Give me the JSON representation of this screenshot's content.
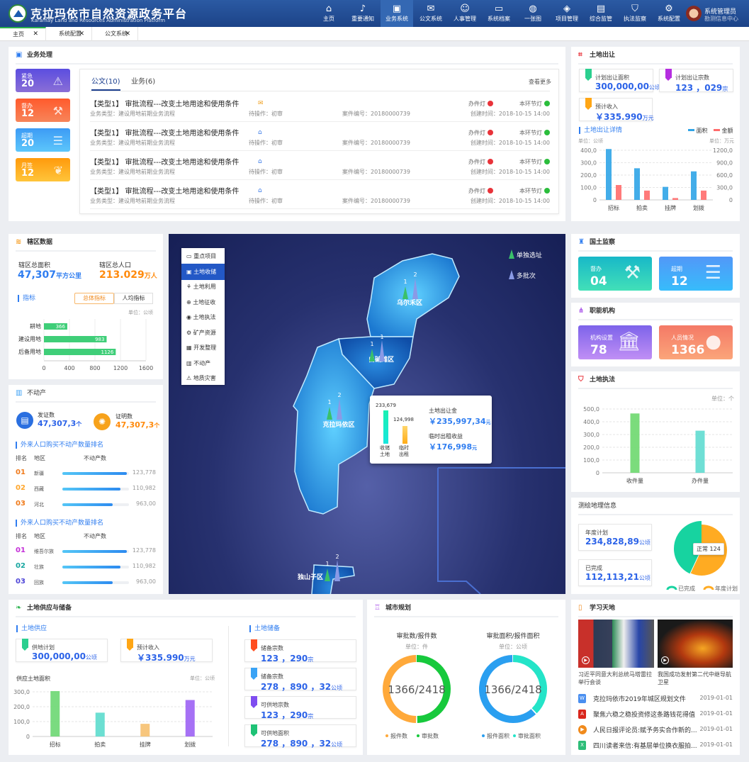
{
  "header": {
    "title": "克拉玛依市自然资源政务平台",
    "subtitle": "Karamay Land and Resources Administration Platform",
    "nav": [
      {
        "label": "主页",
        "icon": "home-icon",
        "g": "⌂"
      },
      {
        "label": "重要通知",
        "icon": "bell-icon",
        "g": "♪"
      },
      {
        "label": "业务系统",
        "icon": "briefcase-icon",
        "g": "▣",
        "active": true
      },
      {
        "label": "公文系统",
        "icon": "document-icon",
        "g": "✉"
      },
      {
        "label": "人事管理",
        "icon": "person-icon",
        "g": "☺"
      },
      {
        "label": "系统档案",
        "icon": "folder-icon",
        "g": "▭"
      },
      {
        "label": "一张图",
        "icon": "globe-icon",
        "g": "◍"
      },
      {
        "label": "项目管理",
        "icon": "layers-icon",
        "g": "◈"
      },
      {
        "label": "综合监管",
        "icon": "monitor-icon",
        "g": "▤"
      },
      {
        "label": "执法监察",
        "icon": "shield-icon",
        "g": "⛉"
      },
      {
        "label": "系统配置",
        "icon": "gear-icon",
        "g": "⚙"
      }
    ],
    "user": {
      "name": "系统管理员",
      "org": "勘测信息中心"
    }
  },
  "tabs": [
    "主页",
    "系统配置",
    "公文系统"
  ],
  "business": {
    "title": "业务处理",
    "stats": [
      {
        "label": "紧急",
        "value": "20",
        "g": "⚠",
        "icon": "alarm-icon",
        "c": "linear-gradient(#5b4de0,#8a6fd6)"
      },
      {
        "label": "督办",
        "value": "12",
        "g": "⚒",
        "icon": "gavel-icon",
        "c": "linear-gradient(#ff5a2c,#f7855a)"
      },
      {
        "label": "超期",
        "value": "20",
        "g": "☰",
        "icon": "overdue-doc-icon",
        "c": "linear-gradient(#3d9bf5,#5cc6fb)"
      },
      {
        "label": "月签",
        "value": "12",
        "g": "❦",
        "icon": "feather-icon",
        "c": "linear-gradient(#ff9a0c,#ffc53b)"
      }
    ],
    "tabs": [
      "公文(10)",
      "业务(6)"
    ],
    "more": "查看更多",
    "items": [
      {
        "title": "【类型1】  审批流程---改变土地用途和使用条件",
        "mail": "closed",
        "type": "业务类型：建设用地前期业务流程",
        "op": "待操作：初审",
        "case": "案件编号：20180000739",
        "lamp1": "办件灯",
        "lamp2": "本环节灯",
        "time": "创建时间：2018-10-15  14:00"
      },
      {
        "title": "【类型1】  审批流程---改变土地用途和使用条件",
        "mail": "open",
        "type": "业务类型：建设用地前期业务流程",
        "op": "待操作：初审",
        "case": "案件编号：20180000739",
        "lamp1": "办件灯",
        "lamp2": "本环节灯",
        "time": "创建时间：2018-10-15  14:00"
      },
      {
        "title": "【类型1】  审批流程---改变土地用途和使用条件",
        "mail": "open",
        "type": "业务类型：建设用地前期业务流程",
        "op": "待操作：初审",
        "case": "案件编号：20180000739",
        "lamp1": "办件灯",
        "lamp2": "本环节灯",
        "time": "创建时间：2018-10-15  14:00"
      },
      {
        "title": "【类型1】  审批流程---改变土地用途和使用条件",
        "mail": "open",
        "type": "业务类型：建设用地前期业务流程",
        "op": "待操作：初审",
        "case": "案件编号：20180000739",
        "lamp1": "办件灯",
        "lamp2": "本环节灯",
        "time": "创建时间：2018-10-15  14:00"
      }
    ],
    "colors": {
      "lamp1": "#e8333a",
      "lamp2": "#2bbd3c"
    }
  },
  "transfer": {
    "title": "土地出让",
    "cards": [
      {
        "label": "计划出让面积",
        "value": "300,000,00",
        "unit": "公顷",
        "color": "#2bcf8f"
      },
      {
        "label": "计划出让宗数",
        "value": "123 ，029",
        "unit": "宗",
        "color": "#b52ee0"
      },
      {
        "label": "预计收入",
        "value": "￥335.990",
        "unit": "万元",
        "color": "#ffa615"
      }
    ],
    "detail": "土地出让详情",
    "unit_left": "单位：公顷",
    "unit_right": "单位：万元",
    "chart_data": {
      "type": "bar",
      "categories": [
        "招标",
        "拍卖",
        "挂牌",
        "划拨"
      ],
      "series": [
        {
          "name": "面积",
          "values": [
            410,
            255,
            105,
            230
          ],
          "axis": "left",
          "color": "#2fa4e7"
        },
        {
          "name": "金额",
          "values": [
            360,
            225,
            45,
            225
          ],
          "axis": "right",
          "color": "#ff6b6b"
        }
      ],
      "ylim_left": [
        0,
        400
      ],
      "ylim_right": [
        0,
        1200
      ],
      "yticks_left": [
        "0",
        "100,0",
        "200,0",
        "300,0",
        "400,0"
      ],
      "yticks_right": [
        "0",
        "300,0",
        "600,0",
        "900,0",
        "1200,0"
      ],
      "legend": "top-right"
    }
  },
  "district": {
    "title": "辖区数据",
    "area_label": "辖区总面积",
    "area": "47,307",
    "area_unit": "平方公里",
    "pop_label": "辖区总人口",
    "pop": "213.029",
    "pop_unit": "万人",
    "indicator": "指标",
    "toggle": [
      "总体指标",
      "人均指标"
    ],
    "unit": "单位：公顷",
    "chart_data": {
      "type": "bar",
      "orientation": "horizontal",
      "categories": [
        "耕地",
        "建设用地",
        "后备用地"
      ],
      "values": [
        366,
        983,
        1126
      ],
      "xlim": [
        0,
        1600
      ],
      "xticks": [
        "0",
        "400",
        "800",
        "1200",
        "1600"
      ]
    }
  },
  "estate": {
    "title": "不动产",
    "cert_label": "发证数",
    "cert": "47,307,3",
    "cert_unit": "个",
    "proof_label": "证明数",
    "proof": "47,307,3",
    "proof_unit": "个",
    "rank1": {
      "title": "外来人口购买不动产数量排名",
      "cols": [
        "排名",
        "地区",
        "不动产数"
      ],
      "rows": [
        {
          "n": "01",
          "area": "新疆",
          "value": "123,778",
          "pct": 97,
          "c": "#f07b1c"
        },
        {
          "n": "02",
          "area": "西藏",
          "value": "110,982",
          "pct": 87,
          "c": "#ffa62b"
        },
        {
          "n": "03",
          "area": "河北",
          "value": "963,00",
          "pct": 76,
          "c": "#f07b1c"
        }
      ]
    },
    "rank2": {
      "title": "外来人口购买不动产数量排名",
      "cols": [
        "排名",
        "地区",
        "不动产数"
      ],
      "rows": [
        {
          "n": "01",
          "area": "维吾尔族",
          "value": "123,778",
          "pct": 97,
          "c": "#c42fd8"
        },
        {
          "n": "02",
          "area": "壮族",
          "value": "110,982",
          "pct": 87,
          "c": "#17a6a0"
        },
        {
          "n": "03",
          "area": "回族",
          "value": "963,00",
          "pct": 76,
          "c": "#4f46d8"
        }
      ]
    }
  },
  "map": {
    "menu": [
      {
        "label": "重点项目",
        "g": "▭",
        "icon": "folder-icon"
      },
      {
        "label": "土地收储",
        "g": "▣",
        "icon": "storage-icon",
        "active": true
      },
      {
        "label": "土地利用",
        "g": "⚘",
        "icon": "land-use-icon"
      },
      {
        "label": "土地征收",
        "g": "⊕",
        "icon": "expropriation-icon"
      },
      {
        "label": "土地执法",
        "g": "◉",
        "icon": "law-icon"
      },
      {
        "label": "矿产资源",
        "g": "⚙",
        "icon": "mineral-icon"
      },
      {
        "label": "开发整理",
        "g": "▦",
        "icon": "develop-icon"
      },
      {
        "label": "不动产",
        "g": "▥",
        "icon": "estate-icon"
      },
      {
        "label": "地质灾害",
        "g": "⚠",
        "icon": "hazard-icon"
      }
    ],
    "legend": [
      "单独选址",
      "多批次"
    ],
    "districts": [
      {
        "name": "乌尔禾区",
        "a": "1",
        "b": "2"
      },
      {
        "name": "白碱滩区",
        "a": "1",
        "b": "1"
      },
      {
        "name": "克拉玛依区",
        "a": "1",
        "b": "2"
      },
      {
        "name": "独山子区",
        "a": "1",
        "b": "2"
      }
    ],
    "popup": {
      "bar1_value": "233,679",
      "bar1_label": "收储\n土地",
      "bar2_value": "124,998",
      "bar2_label": "临时\n出租",
      "v1_label": "土地出让金",
      "v1": "￥235,997,34",
      "v1_unit": "元",
      "v2_label": "临时出租收益",
      "v2": "￥176,998",
      "v2_unit": "元",
      "bar1": 233679,
      "bar2": 124998
    }
  },
  "inspection": {
    "title": "国土监察",
    "cards": [
      {
        "label": "督办",
        "value": "04",
        "g": "⚒",
        "icon": "gavel-icon",
        "c": "linear-gradient(#18b8c8,#42e0b8)"
      },
      {
        "label": "超期",
        "value": "12",
        "g": "☰",
        "icon": "overdue-doc-icon",
        "c": "linear-gradient(#5298f8,#37bcfb)"
      }
    ]
  },
  "org": {
    "title": "职能机构",
    "cards": [
      {
        "label": "机构设置",
        "value": "78",
        "g": "🏛",
        "icon": "institution-icon",
        "c": "linear-gradient(#7d63ea,#c08ff5)"
      },
      {
        "label": "人员情况",
        "value": "1366",
        "g": "●",
        "icon": "person-icon",
        "c": "linear-gradient(#f47966,#fba57a)"
      }
    ]
  },
  "enforce": {
    "title": "土地执法",
    "unit": "单位：个",
    "chart_data": {
      "type": "bar",
      "categories": [
        "收件量",
        "办件量"
      ],
      "values": [
        465,
        330
      ],
      "ylim": [
        0,
        500
      ],
      "yticks": [
        "0",
        "100,0",
        "200,0",
        "300,0",
        "400,0",
        "500,0"
      ],
      "colors": [
        "#6dd86e",
        "#5fdcd0"
      ]
    }
  },
  "survey": {
    "title": "测绘地理信息",
    "plan_label": "年度计划",
    "plan": "234,828,89",
    "plan_unit": "公顷",
    "done_label": "已完成",
    "done": "112,113,21",
    "done_unit": "公顷",
    "tooltip": "正常 124",
    "chart_data": {
      "type": "pie",
      "labels": [
        "已完成",
        "年度计划"
      ],
      "fractions": [
        0.43,
        0.57
      ],
      "colors": [
        "#17d3a0",
        "#ffab22"
      ]
    }
  },
  "supply": {
    "title": "土地供应与储备",
    "supply_title": "土地供应",
    "cards": [
      {
        "label": "供地计划",
        "value": "300,000,00",
        "unit": "公顷",
        "color": "#2bcf8f"
      },
      {
        "label": "预计收入",
        "value": "￥335.990",
        "unit": "万元",
        "color": "#ffa615"
      }
    ],
    "chart_title": "供应土地面积",
    "unit": "单位：公顷",
    "chart_data": {
      "type": "bar",
      "categories": [
        "招标",
        "拍卖",
        "挂牌",
        "划拨"
      ],
      "values": [
        305,
        160,
        85,
        245
      ],
      "ylim": [
        0,
        300
      ],
      "yticks": [
        "0",
        "100,0",
        "200,0",
        "300,0"
      ],
      "colors": [
        "#6cd772",
        "#5cdccd",
        "#f6c06f",
        "#9c62f4"
      ]
    },
    "reserve_title": "土地储备",
    "reserve": [
      {
        "label": "储备宗数",
        "value": "123 ，290",
        "unit": "宗",
        "color": "#ff4d1f"
      },
      {
        "label": "储备宗数",
        "value": "278 ，890 ，32",
        "unit": "公顷",
        "color": "#3aa3f5"
      },
      {
        "label": "可供地宗数",
        "value": "123 ，290",
        "unit": "宗",
        "color": "#7f4df0"
      },
      {
        "label": "可供地面积",
        "value": "278 ，890 ，32",
        "unit": "公顷",
        "color": "#1ec276"
      }
    ]
  },
  "planning": {
    "title": "城市规划",
    "charts": [
      {
        "title": "审批数/报件数",
        "unit": "单位：件",
        "center": "1366/2418",
        "chart_data": {
          "type": "pie",
          "labels": [
            "报件数",
            "审批数"
          ],
          "fractions": [
            0.5,
            0.5
          ],
          "colors": [
            "#ffa93a",
            "#17c93c"
          ]
        }
      },
      {
        "title": "审批面积/报件面积",
        "unit": "单位：公顷",
        "center": "1366/2418",
        "chart_data": {
          "type": "pie",
          "labels": [
            "报件面积",
            "审批面积"
          ],
          "fractions": [
            0.62,
            0.38
          ],
          "colors": [
            "#2a9ff0",
            "#24e4c8"
          ]
        }
      }
    ]
  },
  "study": {
    "title": "学习天地",
    "videos": [
      {
        "caption": "习近平同意大利总统马塔雷拉举行会谈"
      },
      {
        "caption": "我国成功发射第二代中继导航卫星"
      }
    ],
    "news": [
      {
        "title": "克拉玛依市2019年城区规划文件",
        "date": "2019-01-01",
        "type": "W",
        "icon": "word-file-icon",
        "c": "#4a8ff0"
      },
      {
        "title": "聚焦六稳之稳投资修这条路钱花得值",
        "date": "2019-01-01",
        "type": "A",
        "icon": "pdf-file-icon",
        "c": "#d9261c"
      },
      {
        "title": "人民日报评论员:赋予务实合作新的...",
        "date": "2019-01-01",
        "type": "▶",
        "icon": "video-file-icon",
        "c": "#f08a1c"
      },
      {
        "title": "四川读者来信:有基层单位换衣服拍...",
        "date": "2019-01-01",
        "type": "X",
        "icon": "excel-file-icon",
        "c": "#2dbd78"
      }
    ]
  }
}
